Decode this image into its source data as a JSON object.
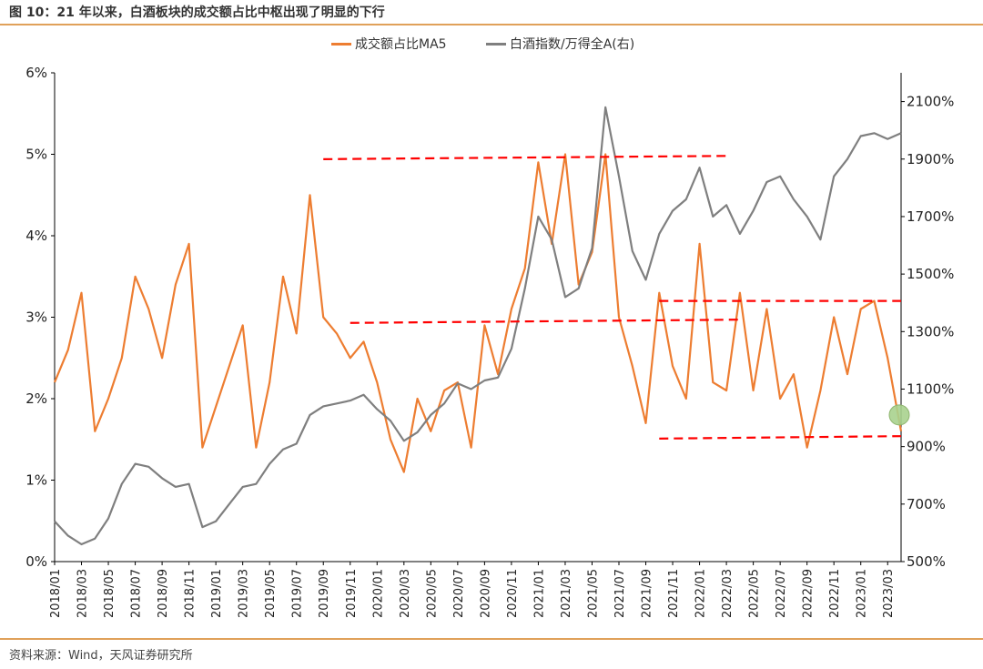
{
  "title": "图 10：21 年以来，白酒板块的成交额占比中枢出现了明显的下行",
  "source": "资料来源：Wind，天风证券研究所",
  "colors": {
    "turnover": "#ed7d31",
    "index": "#7f7f7f",
    "dashed": "#ff0000",
    "accent": "#e0a15a",
    "highlight": "#a9d18e"
  },
  "chart_data": {
    "type": "line",
    "x_tick_labels": [
      "2018/01",
      "2018/03",
      "2018/05",
      "2018/07",
      "2018/09",
      "2018/11",
      "2019/01",
      "2019/03",
      "2019/05",
      "2019/07",
      "2019/09",
      "2019/11",
      "2020/01",
      "2020/03",
      "2020/05",
      "2020/07",
      "2020/09",
      "2020/11",
      "2021/01",
      "2021/03",
      "2021/05",
      "2021/07",
      "2021/09",
      "2021/11",
      "2022/01",
      "2022/03",
      "2022/05",
      "2022/07",
      "2022/09",
      "2022/11",
      "2023/01",
      "2023/03"
    ],
    "y_left": {
      "ticks": [
        "0%",
        "1%",
        "2%",
        "3%",
        "4%",
        "5%",
        "6%"
      ],
      "range": [
        0,
        6
      ]
    },
    "y_right": {
      "ticks": [
        "500%",
        "700%",
        "900%",
        "1100%",
        "1300%",
        "1500%",
        "1700%",
        "1900%",
        "2100%"
      ],
      "range": [
        500,
        2200
      ]
    },
    "series": [
      {
        "name": "成交额占比MA5",
        "axis": "left",
        "unit": "%",
        "points": [
          [
            "2018/01",
            2.2
          ],
          [
            "2018/02",
            2.6
          ],
          [
            "2018/03",
            3.3
          ],
          [
            "2018/04",
            1.6
          ],
          [
            "2018/05",
            2.0
          ],
          [
            "2018/06",
            2.5
          ],
          [
            "2018/07",
            3.5
          ],
          [
            "2018/08",
            3.1
          ],
          [
            "2018/09",
            2.5
          ],
          [
            "2018/10",
            3.4
          ],
          [
            "2018/11",
            3.9
          ],
          [
            "2018/12",
            1.4
          ],
          [
            "2019/01",
            1.9
          ],
          [
            "2019/02",
            2.4
          ],
          [
            "2019/03",
            2.9
          ],
          [
            "2019/04",
            1.4
          ],
          [
            "2019/05",
            2.2
          ],
          [
            "2019/06",
            3.5
          ],
          [
            "2019/07",
            2.8
          ],
          [
            "2019/08",
            4.5
          ],
          [
            "2019/09",
            3.0
          ],
          [
            "2019/10",
            2.8
          ],
          [
            "2019/11",
            2.5
          ],
          [
            "2019/12",
            2.7
          ],
          [
            "2020/01",
            2.2
          ],
          [
            "2020/02",
            1.5
          ],
          [
            "2020/03",
            1.1
          ],
          [
            "2020/04",
            2.0
          ],
          [
            "2020/05",
            1.6
          ],
          [
            "2020/06",
            2.1
          ],
          [
            "2020/07",
            2.2
          ],
          [
            "2020/08",
            1.4
          ],
          [
            "2020/09",
            2.9
          ],
          [
            "2020/10",
            2.3
          ],
          [
            "2020/11",
            3.1
          ],
          [
            "2020/12",
            3.6
          ],
          [
            "2021/01",
            4.9
          ],
          [
            "2021/02",
            3.9
          ],
          [
            "2021/03",
            5.0
          ],
          [
            "2021/04",
            3.4
          ],
          [
            "2021/05",
            3.8
          ],
          [
            "2021/06",
            5.0
          ],
          [
            "2021/07",
            3.0
          ],
          [
            "2021/08",
            2.4
          ],
          [
            "2021/09",
            1.7
          ],
          [
            "2021/10",
            3.3
          ],
          [
            "2021/11",
            2.4
          ],
          [
            "2021/12",
            2.0
          ],
          [
            "2022/01",
            3.9
          ],
          [
            "2022/02",
            2.2
          ],
          [
            "2022/03",
            2.1
          ],
          [
            "2022/04",
            3.3
          ],
          [
            "2022/05",
            2.1
          ],
          [
            "2022/06",
            3.1
          ],
          [
            "2022/07",
            2.0
          ],
          [
            "2022/08",
            2.3
          ],
          [
            "2022/09",
            1.4
          ],
          [
            "2022/10",
            2.1
          ],
          [
            "2022/11",
            3.0
          ],
          [
            "2022/12",
            2.3
          ],
          [
            "2023/01",
            3.1
          ],
          [
            "2023/02",
            3.2
          ],
          [
            "2023/03",
            2.5
          ],
          [
            "2023/04",
            1.6
          ]
        ]
      },
      {
        "name": "白酒指数/万得全A(右)",
        "axis": "right",
        "unit": "%",
        "points": [
          [
            "2018/01",
            640
          ],
          [
            "2018/02",
            590
          ],
          [
            "2018/03",
            560
          ],
          [
            "2018/04",
            580
          ],
          [
            "2018/05",
            650
          ],
          [
            "2018/06",
            770
          ],
          [
            "2018/07",
            840
          ],
          [
            "2018/08",
            830
          ],
          [
            "2018/09",
            790
          ],
          [
            "2018/10",
            760
          ],
          [
            "2018/11",
            770
          ],
          [
            "2018/12",
            620
          ],
          [
            "2019/01",
            640
          ],
          [
            "2019/02",
            700
          ],
          [
            "2019/03",
            760
          ],
          [
            "2019/04",
            770
          ],
          [
            "2019/05",
            840
          ],
          [
            "2019/06",
            890
          ],
          [
            "2019/07",
            910
          ],
          [
            "2019/08",
            1010
          ],
          [
            "2019/09",
            1040
          ],
          [
            "2019/10",
            1050
          ],
          [
            "2019/11",
            1060
          ],
          [
            "2019/12",
            1080
          ],
          [
            "2020/01",
            1030
          ],
          [
            "2020/02",
            990
          ],
          [
            "2020/03",
            920
          ],
          [
            "2020/04",
            950
          ],
          [
            "2020/05",
            1010
          ],
          [
            "2020/06",
            1050
          ],
          [
            "2020/07",
            1120
          ],
          [
            "2020/08",
            1100
          ],
          [
            "2020/09",
            1130
          ],
          [
            "2020/10",
            1140
          ],
          [
            "2020/11",
            1240
          ],
          [
            "2020/12",
            1450
          ],
          [
            "2021/01",
            1700
          ],
          [
            "2021/02",
            1620
          ],
          [
            "2021/03",
            1420
          ],
          [
            "2021/04",
            1450
          ],
          [
            "2021/05",
            1590
          ],
          [
            "2021/06",
            2080
          ],
          [
            "2021/07",
            1840
          ],
          [
            "2021/08",
            1580
          ],
          [
            "2021/09",
            1480
          ],
          [
            "2021/10",
            1640
          ],
          [
            "2021/11",
            1720
          ],
          [
            "2021/12",
            1760
          ],
          [
            "2022/01",
            1870
          ],
          [
            "2022/02",
            1700
          ],
          [
            "2022/03",
            1740
          ],
          [
            "2022/04",
            1640
          ],
          [
            "2022/05",
            1720
          ],
          [
            "2022/06",
            1820
          ],
          [
            "2022/07",
            1840
          ],
          [
            "2022/08",
            1760
          ],
          [
            "2022/09",
            1700
          ],
          [
            "2022/10",
            1620
          ],
          [
            "2022/11",
            1840
          ],
          [
            "2022/12",
            1900
          ],
          [
            "2023/01",
            1980
          ],
          [
            "2023/02",
            1990
          ],
          [
            "2023/03",
            1970
          ],
          [
            "2023/04",
            1990
          ]
        ]
      }
    ],
    "reference_lines": [
      {
        "axis": "left",
        "from": "2019/09",
        "to": "2022/03",
        "y_start": 4.94,
        "y_end": 4.98
      },
      {
        "axis": "left",
        "from": "2019/11",
        "to": "2022/04",
        "y_start": 2.93,
        "y_end": 2.97
      },
      {
        "axis": "left",
        "from": "2021/10",
        "to": "2023/04",
        "y_start": 3.2,
        "y_end": 3.2
      },
      {
        "axis": "left",
        "from": "2021/10",
        "to": "2023/04",
        "y_start": 1.51,
        "y_end": 1.54
      }
    ],
    "marker": {
      "axis": "left",
      "x": "2023/04",
      "y": 1.8
    },
    "grid": false,
    "legend_position": "top"
  }
}
